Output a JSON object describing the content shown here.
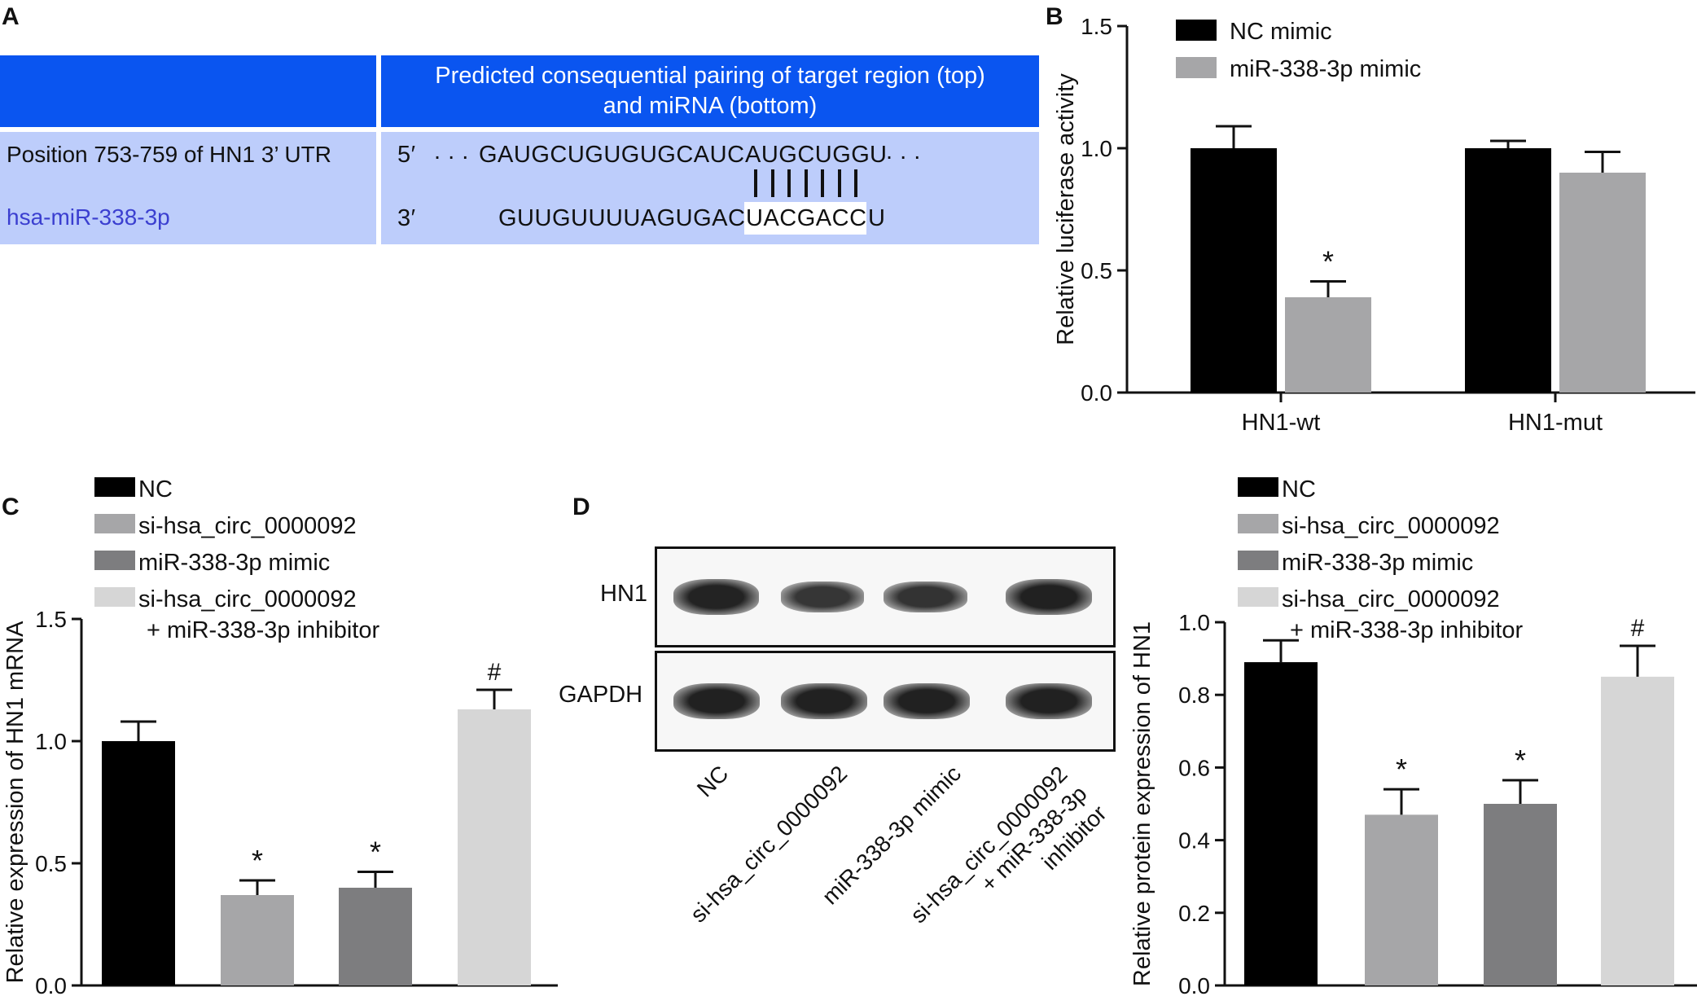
{
  "panels": {
    "A": {
      "letter": "A",
      "header": "Predicted consequential pairing of target region (top) and miRNA (bottom)",
      "row1_label": "Position 753-759 of HN1 3’ UTR",
      "row2_label": "hsa-miR-338-3p",
      "row1_prime": "5′",
      "row2_prime": "3′",
      "row1_dots_left": ". . .",
      "row1_seq_main": "GAUGCUGUGUGCAUC",
      "row1_seq_seed": "AUGCUGG",
      "row1_seq_tail": "U",
      "row1_dots_right": ". . .",
      "row2_seq_main": "GUUGUUUUAGUGAC",
      "row2_seq_seed": "UACGACC",
      "row2_seq_tail": "U",
      "pair_count": 7,
      "colors": {
        "header_bg": "#0a55f0",
        "body_bg": "#bdcdfb",
        "mirna_label": "#3b3fd0"
      }
    },
    "B": {
      "letter": "B"
    },
    "C": {
      "letter": "C"
    },
    "D": {
      "letter": "D"
    },
    "blot": {
      "rows": [
        "HN1",
        "GAPDH"
      ],
      "lanes": [
        "NC",
        "si-hsa_circ_0000092",
        "miR-338-3p mimic",
        "si-hsa_circ_0000092 + miR-338-3p inhibitor"
      ],
      "hn1_intensity": [
        0.92,
        0.6,
        0.65,
        0.95
      ],
      "gapdh_intensity": [
        0.95,
        0.95,
        0.95,
        0.95
      ]
    }
  },
  "chart_data": [
    {
      "panel": "B",
      "type": "bar",
      "categories": [
        "HN1-wt",
        "HN1-mut"
      ],
      "series": [
        {
          "name": "NC mimic",
          "color": "#000000",
          "values": [
            1.0,
            1.0
          ],
          "errors": [
            0.09,
            0.03
          ],
          "marks": [
            "",
            ""
          ]
        },
        {
          "name": "miR-338-3p mimic",
          "color": "#a6a6a8",
          "values": [
            0.39,
            0.9
          ],
          "errors": [
            0.065,
            0.085
          ],
          "marks": [
            "*",
            ""
          ]
        }
      ],
      "ylabel": "Relative luciferase activity",
      "ylim": [
        0,
        1.5
      ],
      "yticks": [
        "0.0",
        "0.5",
        "1.0",
        "1.5"
      ],
      "legend": "top"
    },
    {
      "panel": "C",
      "type": "bar",
      "categories": [
        "NC",
        "si-hsa_circ_0000092",
        "miR-338-3p mimic",
        "si-hsa_circ_0000092 + miR-338-3p inhibitor"
      ],
      "series": [
        {
          "values": [
            1.0,
            0.37,
            0.4,
            1.13
          ],
          "errors": [
            0.08,
            0.06,
            0.065,
            0.08
          ],
          "marks": [
            "",
            "*",
            "*",
            "#"
          ]
        }
      ],
      "colors": [
        "#000000",
        "#a6a6a8",
        "#7d7d7f",
        "#d6d6d6"
      ],
      "legend_lines": [
        "NC",
        "si-hsa_circ_0000092",
        "miR-338-3p mimic",
        "si-hsa_circ_0000092",
        "+ miR-338-3p inhibitor"
      ],
      "ylabel": "Relative expression of HN1 mRNA",
      "ylim": [
        0,
        1.5
      ],
      "yticks": [
        "0.0",
        "0.5",
        "1.0",
        "1.5"
      ],
      "legend": "top"
    },
    {
      "panel": "D",
      "type": "bar",
      "categories": [
        "NC",
        "si-hsa_circ_0000092",
        "miR-338-3p mimic",
        "si-hsa_circ_0000092 + miR-338-3p inhibitor"
      ],
      "series": [
        {
          "values": [
            0.89,
            0.47,
            0.5,
            0.85
          ],
          "errors": [
            0.06,
            0.07,
            0.065,
            0.085
          ],
          "marks": [
            "",
            "*",
            "*",
            "#"
          ]
        }
      ],
      "colors": [
        "#000000",
        "#a6a6a8",
        "#7d7d7f",
        "#d6d6d6"
      ],
      "legend_lines": [
        "NC",
        "si-hsa_circ_0000092",
        "miR-338-3p mimic",
        "si-hsa_circ_0000092",
        "+ miR-338-3p inhibitor"
      ],
      "ylabel": "Relative protein expression of HN1",
      "ylim": [
        0,
        1.0
      ],
      "yticks": [
        "0.0",
        "0.2",
        "0.4",
        "0.6",
        "0.8",
        "1.0"
      ],
      "legend": "top"
    }
  ]
}
